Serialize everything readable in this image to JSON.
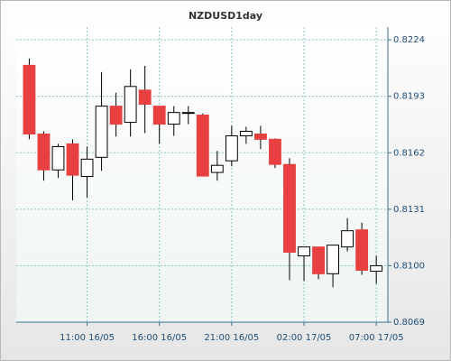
{
  "chart_data": {
    "type": "candlestick",
    "title": "NZDUSD1day",
    "x": [
      0,
      1,
      2,
      3,
      4,
      5,
      6,
      7,
      8,
      9,
      10,
      11,
      12,
      13,
      14,
      15,
      16,
      17,
      18,
      19,
      20,
      21,
      22,
      23,
      24
    ],
    "open": [
      0.821,
      0.81723,
      0.81526,
      0.81669,
      0.8149,
      0.81595,
      0.81876,
      0.81787,
      0.81964,
      0.81876,
      0.81777,
      0.81836,
      0.81827,
      0.81512,
      0.81576,
      0.81713,
      0.81723,
      0.81694,
      0.81556,
      0.81054,
      0.81103,
      0.80956,
      0.81103,
      0.81197,
      0.8097
    ],
    "high": [
      0.82137,
      0.81738,
      0.81669,
      0.81694,
      0.81654,
      0.82063,
      0.8195,
      0.82078,
      0.82097,
      0.81876,
      0.81876,
      0.81876,
      0.81836,
      0.8163,
      0.81768,
      0.81763,
      0.81768,
      0.81699,
      0.8159,
      0.81103,
      0.81103,
      0.81113,
      0.81261,
      0.81236,
      0.81054
    ],
    "low": [
      0.81694,
      0.81467,
      0.81482,
      0.81359,
      0.81374,
      0.81521,
      0.81709,
      0.81709,
      0.81728,
      0.81669,
      0.81713,
      0.81777,
      0.81492,
      0.81467,
      0.81546,
      0.81669,
      0.8164,
      0.81536,
      0.80921,
      0.80916,
      0.80926,
      0.80882,
      0.81079,
      0.8095,
      0.80901
    ],
    "close": [
      0.81723,
      0.81526,
      0.81654,
      0.81497,
      0.81585,
      0.81876,
      0.81777,
      0.81984,
      0.81886,
      0.81777,
      0.81841,
      0.81841,
      0.81492,
      0.81551,
      0.81713,
      0.81738,
      0.81694,
      0.81556,
      0.81074,
      0.81103,
      0.80956,
      0.81113,
      0.81192,
      0.80975,
      0.81
    ],
    "up_color": "#ffffff",
    "down_color": "#e84040",
    "xlim": [
      -0.9,
      24.8
    ],
    "xticks": [
      {
        "value": 4,
        "label": "11:00 16/05"
      },
      {
        "value": 9,
        "label": "16:00 16/05"
      },
      {
        "value": 14,
        "label": "21:00 16/05"
      },
      {
        "value": 19,
        "label": "02:00 17/05"
      },
      {
        "value": 24,
        "label": "07:00 17/05"
      }
    ],
    "ylim": [
      0.8069,
      0.8231
    ],
    "yticks": [
      {
        "value": 0.8069,
        "label": "0.8069"
      },
      {
        "value": 0.81,
        "label": "0.8100"
      },
      0.8131,
      0.8162,
      0.8193,
      0.8224
    ],
    "grid": true
  }
}
